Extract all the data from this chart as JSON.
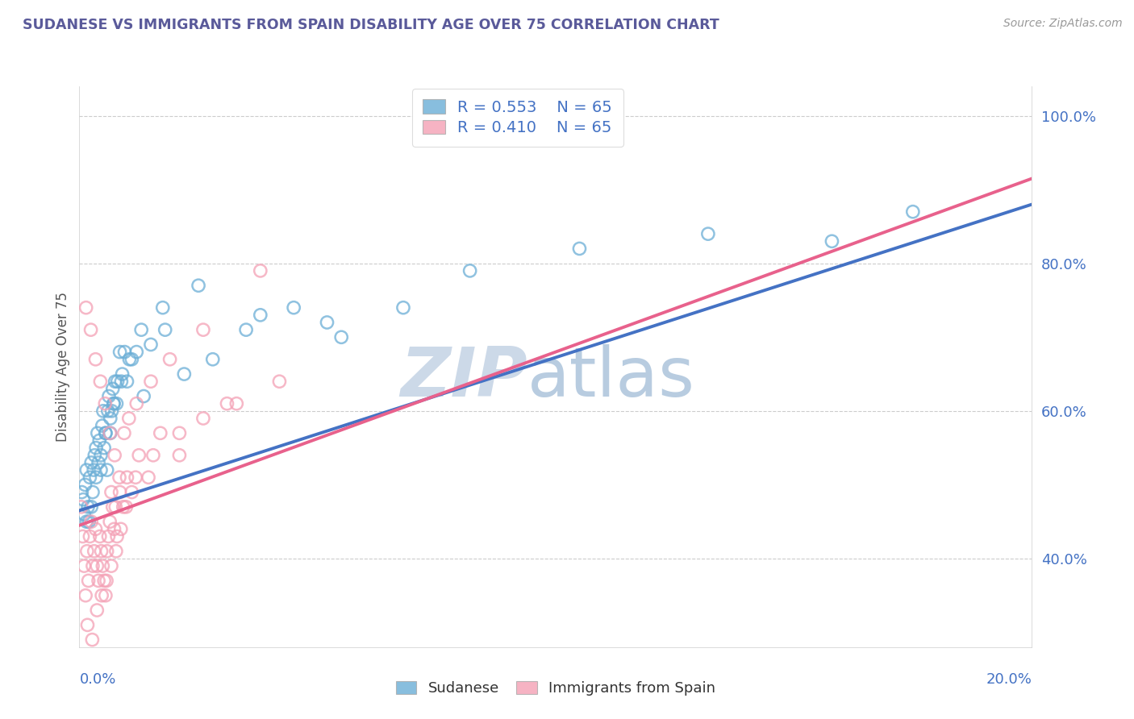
{
  "title": "SUDANESE VS IMMIGRANTS FROM SPAIN DISABILITY AGE OVER 75 CORRELATION CHART",
  "source": "Source: ZipAtlas.com",
  "ylabel": "Disability Age Over 75",
  "xlim": [
    0.0,
    20.0
  ],
  "ylim": [
    28.0,
    104.0
  ],
  "yticks": [
    40.0,
    60.0,
    80.0,
    100.0
  ],
  "ytick_labels": [
    "40.0%",
    "60.0%",
    "80.0%",
    "100.0%"
  ],
  "blue_R": "0.553",
  "blue_N": "65",
  "pink_R": "0.410",
  "pink_N": "65",
  "blue_color": "#6baed6",
  "pink_color": "#f4a0b5",
  "blue_line_color": "#4472c4",
  "pink_line_color": "#e8618c",
  "legend_blue_label": "Sudanese",
  "legend_pink_label": "Immigrants from Spain",
  "watermark_zip": "ZIP",
  "watermark_atlas": "atlas",
  "watermark_color": "#ccd9e8",
  "title_color": "#5a5a9a",
  "axis_label_color": "#4472c4",
  "blue_scatter_x": [
    0.05,
    0.08,
    0.1,
    0.12,
    0.15,
    0.18,
    0.2,
    0.22,
    0.25,
    0.28,
    0.3,
    0.32,
    0.35,
    0.38,
    0.4,
    0.42,
    0.45,
    0.48,
    0.5,
    0.52,
    0.55,
    0.58,
    0.6,
    0.62,
    0.65,
    0.68,
    0.7,
    0.72,
    0.75,
    0.78,
    0.8,
    0.85,
    0.9,
    0.95,
    1.0,
    1.1,
    1.2,
    1.35,
    1.5,
    1.8,
    2.2,
    2.8,
    3.5,
    4.5,
    5.5,
    6.8,
    8.2,
    10.5,
    13.2,
    15.8,
    17.5,
    0.15,
    0.25,
    0.35,
    0.45,
    0.55,
    0.65,
    0.72,
    0.88,
    1.05,
    1.3,
    1.75,
    2.5,
    3.8,
    5.2
  ],
  "blue_scatter_y": [
    49,
    48,
    46,
    50,
    52,
    47,
    45,
    51,
    53,
    49,
    52,
    54,
    55,
    57,
    53,
    56,
    52,
    58,
    60,
    55,
    57,
    52,
    60,
    62,
    57,
    60,
    63,
    61,
    64,
    61,
    64,
    68,
    65,
    68,
    64,
    67,
    68,
    62,
    69,
    71,
    65,
    67,
    71,
    74,
    70,
    74,
    79,
    82,
    84,
    83,
    87,
    45,
    47,
    51,
    54,
    57,
    59,
    61,
    64,
    67,
    71,
    74,
    77,
    73,
    72
  ],
  "pink_scatter_x": [
    0.04,
    0.07,
    0.1,
    0.13,
    0.16,
    0.19,
    0.22,
    0.25,
    0.28,
    0.31,
    0.34,
    0.37,
    0.4,
    0.43,
    0.46,
    0.49,
    0.52,
    0.55,
    0.58,
    0.61,
    0.64,
    0.67,
    0.7,
    0.73,
    0.76,
    0.79,
    0.85,
    0.92,
    1.0,
    1.1,
    1.25,
    1.45,
    1.7,
    2.1,
    2.6,
    3.3,
    4.2,
    0.14,
    0.24,
    0.34,
    0.44,
    0.54,
    0.64,
    0.74,
    0.84,
    0.94,
    1.04,
    1.2,
    1.5,
    1.9,
    2.6,
    3.8,
    0.17,
    0.27,
    0.37,
    0.47,
    0.57,
    0.67,
    0.77,
    0.87,
    0.98,
    1.18,
    1.55,
    2.1,
    3.1
  ],
  "pink_scatter_y": [
    47,
    43,
    39,
    35,
    41,
    37,
    43,
    45,
    39,
    41,
    44,
    39,
    37,
    43,
    41,
    39,
    37,
    35,
    41,
    43,
    45,
    49,
    47,
    44,
    47,
    43,
    49,
    47,
    51,
    49,
    54,
    51,
    57,
    54,
    59,
    61,
    64,
    74,
    71,
    67,
    64,
    61,
    57,
    54,
    51,
    57,
    59,
    61,
    64,
    67,
    71,
    79,
    31,
    29,
    33,
    35,
    37,
    39,
    41,
    44,
    47,
    51,
    54,
    57,
    61
  ],
  "blue_trend_x": [
    0.0,
    20.0
  ],
  "blue_trend_y": [
    46.5,
    88.0
  ],
  "pink_trend_x": [
    0.0,
    20.0
  ],
  "pink_trend_y": [
    44.5,
    91.5
  ]
}
